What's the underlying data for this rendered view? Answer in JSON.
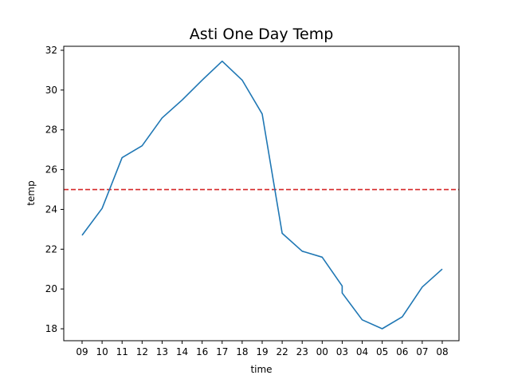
{
  "chart_data": {
    "type": "line",
    "title": "Asti One Day Temp",
    "xlabel": "time",
    "ylabel": "temp",
    "categories": [
      "09",
      "10",
      "11",
      "12",
      "13",
      "14",
      "16",
      "17",
      "18",
      "19",
      "22",
      "23",
      "00",
      "03",
      "04",
      "05",
      "06",
      "07",
      "08"
    ],
    "series": [
      {
        "color": "#1f77b4",
        "points": [
          {
            "x": "09",
            "y": 22.7
          },
          {
            "x": "10",
            "y": 24.05
          },
          {
            "x": "11",
            "y": 26.6
          },
          {
            "x": "12",
            "y": 27.2
          },
          {
            "x": "13",
            "y": 28.6
          },
          {
            "x": "14",
            "y": 29.5
          },
          {
            "x": "16",
            "y": 30.5
          },
          {
            "x": "17",
            "y": 31.45
          },
          {
            "x": "18",
            "y": 30.5
          },
          {
            "x": "19",
            "y": 28.8
          },
          {
            "x": "22",
            "y": 22.8
          },
          {
            "x": "23",
            "y": 21.9
          },
          {
            "x": "00",
            "y": 21.6
          },
          {
            "x": "03",
            "y": 20.15
          },
          {
            "x": "03",
            "y": 19.8
          },
          {
            "x": "04",
            "y": 18.45
          },
          {
            "x": "05",
            "y": 18.0
          },
          {
            "x": "06",
            "y": 18.6
          },
          {
            "x": "07",
            "y": 20.1
          },
          {
            "x": "08",
            "y": 21.0
          }
        ]
      }
    ],
    "reference_line": {
      "y": 25,
      "color": "#d62728",
      "style": "dashed"
    },
    "ylim": [
      17.4,
      32.2
    ],
    "yticks": [
      18,
      20,
      22,
      24,
      26,
      28,
      30,
      32
    ],
    "grid": false,
    "legend": "none"
  }
}
